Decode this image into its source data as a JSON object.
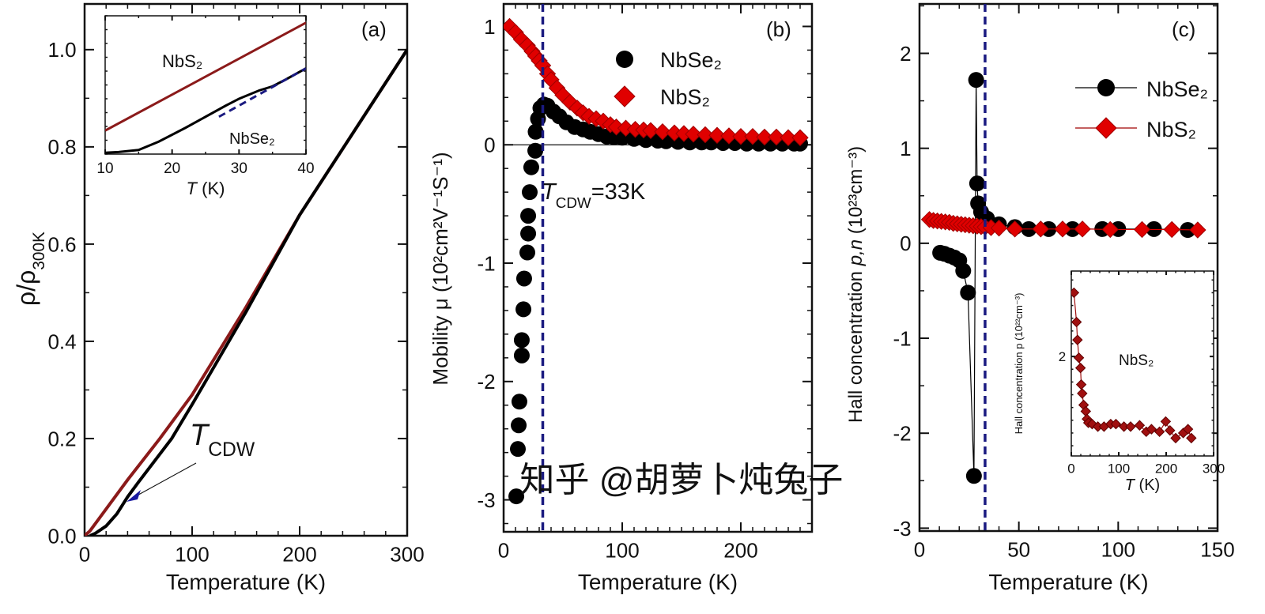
{
  "watermark": "知乎 @胡萝卜炖兔子",
  "chart_data": [
    {
      "id": "a",
      "type": "line",
      "panel_label": "(a)",
      "xlabel": "Temperature (K)",
      "ylabel": {
        "text": "ρ/ρ",
        "sub": "300K"
      },
      "xlim": [
        0,
        300
      ],
      "ylim": [
        0,
        1.094
      ],
      "xticks": [
        "0",
        "100",
        "200",
        "300"
      ],
      "yticks": [
        "0.0",
        "0.2",
        "0.4",
        "0.6",
        "0.8",
        "1.0"
      ],
      "grid": false,
      "annotation": {
        "italic": "T",
        "sub": "CDW",
        "color": "#1a1aa0"
      },
      "series": [
        {
          "name": "NbS2",
          "color": "#8b1a1a",
          "x": [
            0,
            5,
            20,
            40,
            70,
            100,
            150,
            200,
            250,
            300
          ],
          "y": [
            0,
            0.01,
            0.055,
            0.115,
            0.2,
            0.29,
            0.47,
            0.66,
            0.83,
            1.0
          ]
        },
        {
          "name": "NbSe2",
          "color": "#000000",
          "x": [
            5,
            10,
            20,
            30,
            40,
            50,
            81,
            100,
            150,
            200,
            250,
            300
          ],
          "y": [
            0,
            0.005,
            0.02,
            0.045,
            0.08,
            0.11,
            0.2,
            0.27,
            0.46,
            0.66,
            0.83,
            1.0
          ]
        }
      ]
    },
    {
      "id": "a-inset",
      "type": "line",
      "xlabel": {
        "italic": "T",
        "rest": " (K)"
      },
      "xlim": [
        10,
        40
      ],
      "ylim": [
        0,
        1
      ],
      "xticks": [
        "10",
        "20",
        "30",
        "40"
      ],
      "yticks": [],
      "labels": {
        "nbs2": "NbS₂",
        "nbse2": "NbSe₂"
      },
      "series": [
        {
          "name": "NbS2",
          "color": "#8b1a1a",
          "x": [
            10,
            40
          ],
          "y": [
            0.17,
            0.95
          ]
        },
        {
          "name": "NbSe2",
          "color": "#000000",
          "x": [
            10,
            12,
            15,
            18,
            20,
            22,
            25,
            28,
            30,
            33,
            35,
            37,
            40
          ],
          "y": [
            0.01,
            0.015,
            0.03,
            0.09,
            0.14,
            0.19,
            0.27,
            0.35,
            0.4,
            0.46,
            0.49,
            0.54,
            0.62
          ]
        },
        {
          "name": "extrapolation",
          "color": "#1a1a80",
          "dashed": true,
          "x": [
            27,
            40
          ],
          "y": [
            0.27,
            0.62
          ]
        }
      ]
    },
    {
      "id": "b",
      "type": "scatter",
      "panel_label": "(b)",
      "xlabel": "Temperature (K)",
      "ylabel": "Mobility μ (10²cm²V⁻¹S⁻¹)",
      "xlim": [
        0,
        260
      ],
      "ylim": [
        -3.27,
        1.19
      ],
      "xticks": [
        "0",
        "100",
        "200"
      ],
      "yticks": [
        "1",
        "0",
        "-1",
        "-2",
        "-3"
      ],
      "grid": false,
      "legend": {
        "position": "top-right",
        "entries": [
          "NbSe₂",
          "NbS₂"
        ]
      },
      "vline": {
        "x": 33,
        "color": "#1a1a80"
      },
      "annotation": {
        "italic": "T",
        "sub": "CDW",
        "rest": "=33K",
        "color": "#1a1a80"
      },
      "series": [
        {
          "name": "NbSe₂",
          "marker": "circle",
          "color": "#000000",
          "x": [
            10.7,
            12,
            12.7,
            13.3,
            15.3,
            15.3,
            16.7,
            17.3,
            20,
            20.7,
            20.7,
            22,
            23.3,
            26.7,
            27,
            29,
            31,
            34,
            37,
            42,
            47,
            53,
            60,
            67,
            73,
            80,
            87,
            93,
            100,
            110,
            120,
            130,
            137,
            147,
            157,
            167,
            175,
            185,
            195,
            205,
            215,
            225,
            235,
            245,
            250
          ],
          "y": [
            -2.97,
            -2.57,
            -2.37,
            -2.17,
            -1.78,
            -1.65,
            -1.39,
            -1.13,
            -0.91,
            -0.75,
            -0.6,
            -0.4,
            -0.19,
            -0.05,
            0.11,
            0.22,
            0.31,
            0.34,
            0.33,
            0.28,
            0.24,
            0.19,
            0.15,
            0.13,
            0.11,
            0.09,
            0.07,
            0.065,
            0.06,
            0.05,
            0.04,
            0.035,
            0.03,
            0.025,
            0.02,
            0.02,
            0.02,
            0.015,
            0.015,
            0.01,
            0.01,
            0.01,
            0.01,
            0.01,
            0.01
          ]
        },
        {
          "name": "NbS₂",
          "marker": "diamond",
          "color": "#e00000",
          "x": [
            5,
            10,
            15,
            20,
            24,
            27,
            30,
            33,
            37,
            40,
            45,
            50,
            56,
            62,
            67,
            72,
            78,
            84,
            90,
            95,
            103,
            111,
            118,
            124,
            134,
            144,
            152,
            160,
            170,
            180,
            190,
            200,
            210,
            220,
            230,
            240,
            250
          ],
          "y": [
            1.0,
            0.95,
            0.89,
            0.84,
            0.79,
            0.75,
            0.71,
            0.67,
            0.6,
            0.55,
            0.48,
            0.42,
            0.36,
            0.31,
            0.27,
            0.24,
            0.22,
            0.2,
            0.17,
            0.15,
            0.14,
            0.13,
            0.125,
            0.12,
            0.11,
            0.1,
            0.095,
            0.09,
            0.085,
            0.08,
            0.075,
            0.07,
            0.07,
            0.065,
            0.065,
            0.06,
            0.06
          ]
        }
      ]
    },
    {
      "id": "c",
      "type": "scatter",
      "panel_label": "(c)",
      "xlabel": "Temperature (K)",
      "ylabel": {
        "text": "Hall concentration ",
        "italic": "p,n",
        "rest": " (10²³cm⁻³)"
      },
      "xlim": [
        0,
        150
      ],
      "ylim": [
        -3.03,
        2.52
      ],
      "xticks": [
        "0",
        "50",
        "100",
        "150"
      ],
      "yticks": [
        "2",
        "1",
        "0",
        "-1",
        "-2",
        "-3"
      ],
      "grid": false,
      "legend": {
        "position": "top-right",
        "entries": [
          "NbSe₂",
          "NbS₂"
        ]
      },
      "vline": {
        "x": 33,
        "color": "#1a1a80"
      },
      "series": [
        {
          "name": "NbSe₂",
          "marker": "circle",
          "color": "#000000",
          "connected": true,
          "x": [
            10.4,
            12.5,
            15,
            17.5,
            20,
            22,
            24.4,
            27.4,
            28.5,
            29,
            29.5,
            31,
            34,
            40,
            48,
            55,
            65,
            77,
            92,
            100,
            118,
            135
          ],
          "y": [
            -0.1,
            -0.11,
            -0.13,
            -0.15,
            -0.18,
            -0.29,
            -0.52,
            -2.45,
            1.72,
            0.63,
            0.42,
            0.33,
            0.26,
            0.2,
            0.17,
            0.15,
            0.15,
            0.15,
            0.15,
            0.15,
            0.15,
            0.14
          ]
        },
        {
          "name": "NbS₂",
          "marker": "diamond",
          "color": "#e00000",
          "connected": true,
          "x": [
            5,
            7,
            9,
            11,
            13,
            15,
            17,
            19,
            21,
            23,
            25,
            27,
            29,
            31,
            33,
            36,
            40,
            48,
            61,
            72,
            82,
            96,
            112,
            127,
            140
          ],
          "y": [
            0.25,
            0.24,
            0.235,
            0.23,
            0.225,
            0.22,
            0.21,
            0.205,
            0.2,
            0.195,
            0.19,
            0.185,
            0.18,
            0.175,
            0.17,
            0.165,
            0.16,
            0.15,
            0.15,
            0.15,
            0.15,
            0.145,
            0.145,
            0.145,
            0.14
          ]
        }
      ]
    },
    {
      "id": "c-inset",
      "type": "scatter",
      "xlabel": {
        "italic": "T",
        "rest": " (K)"
      },
      "ylabel": "Hall concentration p (10²²cm⁻³)",
      "xlim": [
        0,
        300
      ],
      "ylim": [
        1.22,
        2.67
      ],
      "xticks": [
        "0",
        "100",
        "200",
        "300"
      ],
      "yticks": [
        "2"
      ],
      "labels": {
        "nbs2": "NbS₂"
      },
      "series": [
        {
          "name": "NbS₂",
          "marker": "diamond",
          "color": "#a01010",
          "connected": true,
          "x": [
            5.6,
            11,
            13,
            16,
            19.4,
            21,
            23,
            26,
            30.5,
            33,
            36,
            44,
            56,
            69,
            83,
            94,
            111,
            125,
            144,
            158,
            169,
            186,
            199,
            208,
            220,
            236,
            246,
            253
          ],
          "y": [
            2.5,
            2.27,
            2.13,
            1.99,
            1.91,
            1.78,
            1.71,
            1.62,
            1.57,
            1.51,
            1.48,
            1.47,
            1.45,
            1.45,
            1.47,
            1.47,
            1.45,
            1.45,
            1.46,
            1.41,
            1.43,
            1.41,
            1.49,
            1.42,
            1.36,
            1.4,
            1.43,
            1.36
          ]
        }
      ]
    }
  ]
}
